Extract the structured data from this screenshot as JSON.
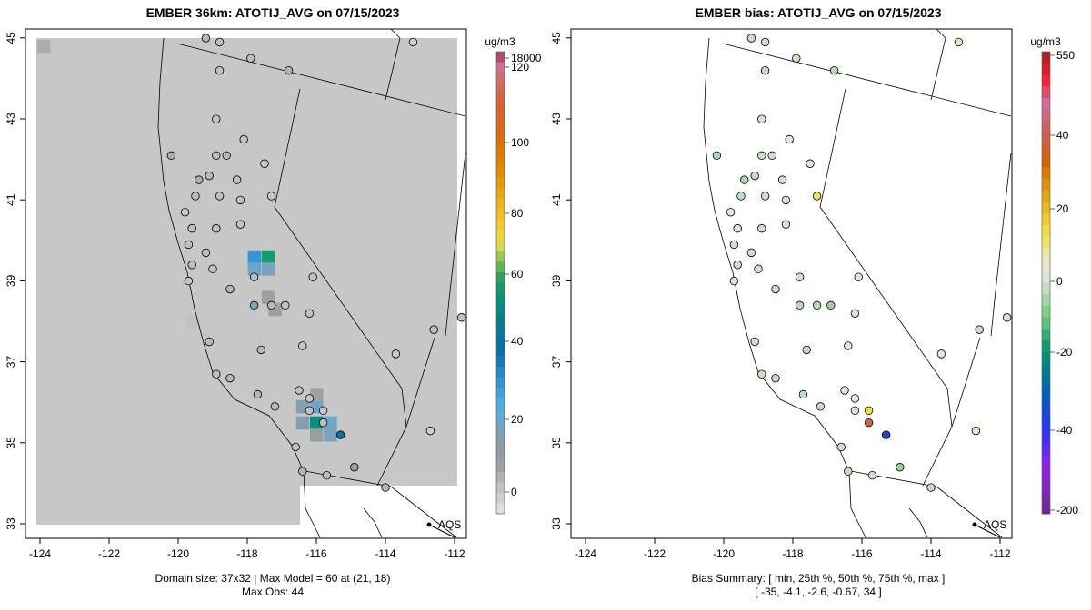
{
  "left": {
    "title": "EMBER 36km: ATOTIJ_AVG on 07/15/2023",
    "footer_line1": "Domain size: 37x32 | Max Model = 60 at (21, 18)",
    "footer_line2": "Max Obs: 44",
    "colorbar_unit": "ug/m3",
    "colorbar_ticks": [
      "18000",
      "120",
      "100",
      "80",
      "60",
      "40",
      "20",
      "0"
    ]
  },
  "right": {
    "title": "EMBER bias: ATOTIJ_AVG on 07/15/2023",
    "footer_line1": "Bias Summary: [ min, 25th %, 50th %, 75th %, max ]",
    "footer_line2": "[ -35,  -4.1,  -2.6,  -0.67,  34 ]",
    "colorbar_unit": "ug/m3",
    "colorbar_ticks": [
      "550",
      "40",
      "20",
      "0",
      "-20",
      "-40",
      "-200"
    ]
  },
  "legend_label": "AQS",
  "chart_data": {
    "type": "map",
    "x_ticks": [
      "-124",
      "-122",
      "-120",
      "-118",
      "-116",
      "-114",
      "-112"
    ],
    "y_ticks": [
      "33",
      "35",
      "37",
      "39",
      "41",
      "43",
      "45"
    ],
    "xlim": [
      -124.4,
      -111.7
    ],
    "ylim": [
      32.6,
      45.2
    ],
    "model_background_value": 3,
    "model_cells": [
      {
        "lon": -117.8,
        "lat": 39.6,
        "value": 33
      },
      {
        "lon": -117.4,
        "lat": 39.6,
        "value": 60
      },
      {
        "lon": -117.8,
        "lat": 39.3,
        "value": 22
      },
      {
        "lon": -117.4,
        "lat": 39.3,
        "value": 20
      },
      {
        "lon": -117.4,
        "lat": 38.6,
        "value": 10
      },
      {
        "lon": -116.4,
        "lat": 35.9,
        "value": 18
      },
      {
        "lon": -116.0,
        "lat": 35.9,
        "value": 22
      },
      {
        "lon": -116.0,
        "lat": 35.5,
        "value": 55
      },
      {
        "lon": -115.6,
        "lat": 35.5,
        "value": 22
      },
      {
        "lon": -116.4,
        "lat": 35.5,
        "value": 18
      },
      {
        "lon": -116.0,
        "lat": 36.2,
        "value": 10
      },
      {
        "lon": -115.6,
        "lat": 35.2,
        "value": 20
      },
      {
        "lon": -116.0,
        "lat": 35.2,
        "value": 12
      },
      {
        "lon": -123.9,
        "lat": 44.8,
        "value": 8
      },
      {
        "lon": -117.2,
        "lat": 38.3,
        "value": 10
      },
      {
        "lon": -119.6,
        "lat": 38.0,
        "value": 4
      }
    ],
    "stations": [
      {
        "lon": -119.2,
        "lat": 45.0,
        "obs": 6,
        "bias": -3
      },
      {
        "lon": -118.8,
        "lat": 44.9,
        "obs": 5,
        "bias": -3
      },
      {
        "lon": -118.8,
        "lat": 44.2,
        "obs": 4,
        "bias": -4
      },
      {
        "lon": -117.9,
        "lat": 44.5,
        "obs": 5,
        "bias": -3
      },
      {
        "lon": -116.8,
        "lat": 44.2,
        "obs": 7,
        "bias": -5
      },
      {
        "lon": -113.2,
        "lat": 44.9,
        "obs": 2,
        "bias": 3
      },
      {
        "lon": -118.9,
        "lat": 43.0,
        "obs": 4,
        "bias": -2
      },
      {
        "lon": -118.1,
        "lat": 42.5,
        "obs": 4,
        "bias": -1
      },
      {
        "lon": -120.2,
        "lat": 42.1,
        "obs": 8,
        "bias": -6
      },
      {
        "lon": -118.9,
        "lat": 42.1,
        "obs": 5,
        "bias": -3
      },
      {
        "lon": -118.6,
        "lat": 42.1,
        "obs": 6,
        "bias": -3
      },
      {
        "lon": -117.5,
        "lat": 41.9,
        "obs": 3,
        "bias": -1
      },
      {
        "lon": -119.4,
        "lat": 41.5,
        "obs": 8,
        "bias": -6
      },
      {
        "lon": -119.1,
        "lat": 41.6,
        "obs": 6,
        "bias": -4
      },
      {
        "lon": -118.3,
        "lat": 41.5,
        "obs": 4,
        "bias": -2
      },
      {
        "lon": -117.3,
        "lat": 41.1,
        "obs": 3,
        "bias": 8
      },
      {
        "lon": -119.5,
        "lat": 41.1,
        "obs": 5,
        "bias": -4
      },
      {
        "lon": -118.8,
        "lat": 41.1,
        "obs": 5,
        "bias": -3
      },
      {
        "lon": -118.2,
        "lat": 41.0,
        "obs": 4,
        "bias": -2
      },
      {
        "lon": -119.8,
        "lat": 40.7,
        "obs": 3,
        "bias": 0
      },
      {
        "lon": -119.6,
        "lat": 40.3,
        "obs": 4,
        "bias": -1
      },
      {
        "lon": -118.9,
        "lat": 40.3,
        "obs": 5,
        "bias": -3
      },
      {
        "lon": -118.2,
        "lat": 40.4,
        "obs": 4,
        "bias": -2
      },
      {
        "lon": -119.7,
        "lat": 39.9,
        "obs": 5,
        "bias": -3
      },
      {
        "lon": -119.2,
        "lat": 39.7,
        "obs": 5,
        "bias": -3
      },
      {
        "lon": -119.6,
        "lat": 39.4,
        "obs": 5,
        "bias": -3
      },
      {
        "lon": -119.0,
        "lat": 39.3,
        "obs": 4,
        "bias": -2
      },
      {
        "lon": -119.7,
        "lat": 39.0,
        "obs": 3,
        "bias": -1
      },
      {
        "lon": -118.5,
        "lat": 38.8,
        "obs": 6,
        "bias": -4
      },
      {
        "lon": -117.8,
        "lat": 39.1,
        "obs": 5,
        "bias": -3
      },
      {
        "lon": -117.8,
        "lat": 38.4,
        "obs": 20,
        "bias": -5
      },
      {
        "lon": -117.3,
        "lat": 38.4,
        "obs": 6,
        "bias": -5
      },
      {
        "lon": -116.2,
        "lat": 38.2,
        "obs": 4,
        "bias": -1
      },
      {
        "lon": -116.1,
        "lat": 39.1,
        "obs": 4,
        "bias": -1
      },
      {
        "lon": -116.9,
        "lat": 38.4,
        "obs": 4,
        "bias": -8
      },
      {
        "lon": -117.6,
        "lat": 37.3,
        "obs": 6,
        "bias": -4
      },
      {
        "lon": -116.4,
        "lat": 37.4,
        "obs": 3,
        "bias": -1
      },
      {
        "lon": -119.1,
        "lat": 37.5,
        "obs": 5,
        "bias": -3
      },
      {
        "lon": -118.9,
        "lat": 36.7,
        "obs": 5,
        "bias": -3
      },
      {
        "lon": -118.5,
        "lat": 36.6,
        "obs": 6,
        "bias": -4
      },
      {
        "lon": -117.7,
        "lat": 36.2,
        "obs": 6,
        "bias": -4
      },
      {
        "lon": -117.2,
        "lat": 35.9,
        "obs": 6,
        "bias": -4
      },
      {
        "lon": -116.5,
        "lat": 36.3,
        "obs": 4,
        "bias": -1
      },
      {
        "lon": -116.2,
        "lat": 36.1,
        "obs": 3,
        "bias": 0
      },
      {
        "lon": -116.2,
        "lat": 35.8,
        "obs": 4,
        "bias": -2
      },
      {
        "lon": -116.6,
        "lat": 34.9,
        "obs": 5,
        "bias": -3
      },
      {
        "lon": -116.4,
        "lat": 34.3,
        "obs": 6,
        "bias": -4
      },
      {
        "lon": -115.7,
        "lat": 34.2,
        "obs": 5,
        "bias": -3
      },
      {
        "lon": -114.9,
        "lat": 34.4,
        "obs": 12,
        "bias": -8
      },
      {
        "lon": -114.0,
        "lat": 33.9,
        "obs": 6,
        "bias": -4
      },
      {
        "lon": -113.7,
        "lat": 37.2,
        "obs": 3,
        "bias": 0
      },
      {
        "lon": -112.6,
        "lat": 37.8,
        "obs": 5,
        "bias": -3
      },
      {
        "lon": -111.8,
        "lat": 38.1,
        "obs": 4,
        "bias": -2
      },
      {
        "lon": -112.7,
        "lat": 35.3,
        "obs": 1,
        "bias": 3
      },
      {
        "lon": -115.3,
        "lat": 35.2,
        "obs": 44,
        "bias": -35
      },
      {
        "lon": -115.8,
        "lat": 35.8,
        "obs": 3,
        "bias": 10
      },
      {
        "lon": -115.8,
        "lat": 35.5,
        "obs": 5,
        "bias": 34
      }
    ]
  }
}
